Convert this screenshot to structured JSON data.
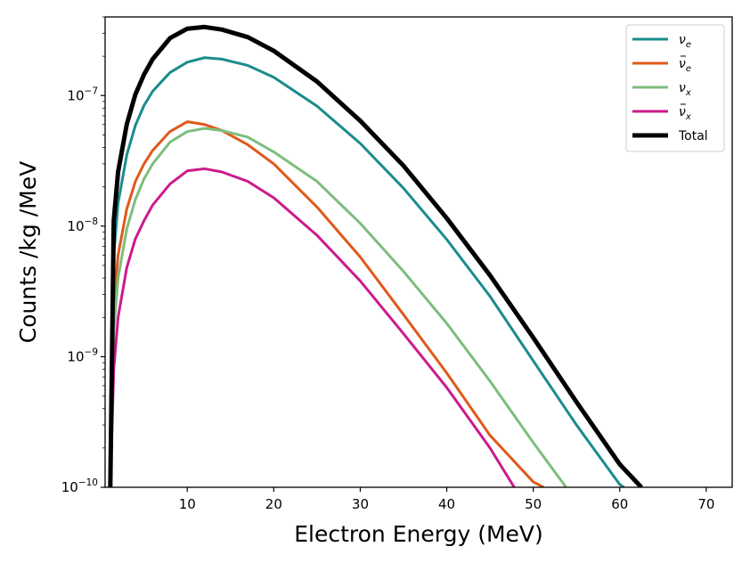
{
  "chart_data": {
    "type": "line",
    "title": "",
    "xlabel": "Electron Energy (MeV)",
    "ylabel": "Counts /kg /MeV",
    "xlim": [
      0.5,
      73
    ],
    "ylim": [
      1e-10,
      4e-07
    ],
    "yscale": "log",
    "grid": false,
    "legend_position": "top-right",
    "xticks": [
      {
        "value": 10,
        "label": "10"
      },
      {
        "value": 20,
        "label": "20"
      },
      {
        "value": 30,
        "label": "30"
      },
      {
        "value": 40,
        "label": "40"
      },
      {
        "value": 50,
        "label": "50"
      },
      {
        "value": 60,
        "label": "60"
      },
      {
        "value": 70,
        "label": "70"
      }
    ],
    "yticks": [
      {
        "value": 1e-10,
        "mantissa": "10",
        "exponent": "−10"
      },
      {
        "value": 1e-09,
        "mantissa": "10",
        "exponent": "−9"
      },
      {
        "value": 1e-08,
        "mantissa": "10",
        "exponent": "−8"
      },
      {
        "value": 1e-07,
        "mantissa": "10",
        "exponent": "−7"
      }
    ],
    "series": [
      {
        "name": "nu_e",
        "legend_main": "ν",
        "legend_sub": "e",
        "legend_bar": false,
        "color": "#1a8c8c",
        "width": 3,
        "x": [
          1.1,
          1.5,
          2,
          3,
          4,
          5,
          6,
          8,
          10,
          12,
          14,
          17,
          20,
          25,
          30,
          35,
          40,
          45,
          50,
          55,
          60,
          60.5
        ],
        "y": [
          1e-10,
          6e-09,
          1.5e-08,
          3.5e-08,
          5.9e-08,
          8.4e-08,
          1.08e-07,
          1.5e-07,
          1.8e-07,
          1.95e-07,
          1.9e-07,
          1.7e-07,
          1.38e-07,
          8.3e-08,
          4.3e-08,
          1.95e-08,
          7.9e-09,
          2.9e-09,
          9.3e-10,
          3e-10,
          1.05e-10,
          1e-10
        ]
      },
      {
        "name": "nu_e_bar",
        "legend_main": "ν",
        "legend_sub": "e",
        "legend_bar": true,
        "color": "#e0591a",
        "width": 3,
        "x": [
          1.1,
          1.5,
          2,
          3,
          4,
          5,
          6,
          8,
          10,
          12,
          14,
          17,
          20,
          25,
          30,
          35,
          40,
          45,
          50,
          51.2
        ],
        "y": [
          1e-10,
          2.5e-09,
          6e-09,
          1.35e-08,
          2.2e-08,
          3e-08,
          3.8e-08,
          5.3e-08,
          6.3e-08,
          6e-08,
          5.4e-08,
          4.2e-08,
          3e-08,
          1.4e-08,
          5.8e-09,
          2.1e-09,
          7.5e-10,
          2.5e-10,
          1.1e-10,
          1e-10
        ]
      },
      {
        "name": "nu_x",
        "legend_main": "ν",
        "legend_sub": "x",
        "legend_bar": false,
        "color": "#7dbd7d",
        "width": 3,
        "x": [
          1.1,
          1.5,
          2,
          3,
          4,
          5,
          6,
          8,
          10,
          12,
          14,
          17,
          20,
          25,
          30,
          35,
          40,
          45,
          50,
          53.8
        ],
        "y": [
          1e-10,
          1.6e-09,
          4e-09,
          9.5e-09,
          1.6e-08,
          2.3e-08,
          3e-08,
          4.4e-08,
          5.3e-08,
          5.6e-08,
          5.4e-08,
          4.8e-08,
          3.7e-08,
          2.2e-08,
          1.05e-08,
          4.5e-09,
          1.8e-09,
          6.5e-10,
          2.2e-10,
          1e-10
        ]
      },
      {
        "name": "nu_x_bar",
        "legend_main": "ν",
        "legend_sub": "x",
        "legend_bar": true,
        "color": "#cc1a8c",
        "width": 3,
        "x": [
          1.1,
          1.5,
          2,
          3,
          4,
          5,
          6,
          8,
          10,
          12,
          14,
          17,
          20,
          25,
          30,
          35,
          40,
          45,
          47.8
        ],
        "y": [
          1e-10,
          8e-10,
          2e-09,
          4.8e-09,
          8e-09,
          1.1e-08,
          1.45e-08,
          2.1e-08,
          2.65e-08,
          2.75e-08,
          2.6e-08,
          2.2e-08,
          1.65e-08,
          8.5e-09,
          3.8e-09,
          1.5e-09,
          5.8e-10,
          2e-10,
          1e-10
        ]
      },
      {
        "name": "Total",
        "legend_main": "Total",
        "legend_sub": "",
        "legend_bar": false,
        "color": "#000000",
        "width": 5,
        "x": [
          1.1,
          1.5,
          2,
          3,
          4,
          5,
          6,
          8,
          10,
          12,
          14,
          17,
          20,
          25,
          30,
          35,
          40,
          45,
          50,
          55,
          60,
          62.5
        ],
        "y": [
          1e-10,
          1.1e-08,
          2.6e-08,
          6e-08,
          1.02e-07,
          1.45e-07,
          1.9e-07,
          2.75e-07,
          3.25e-07,
          3.35e-07,
          3.2e-07,
          2.8e-07,
          2.2e-07,
          1.28e-07,
          6.4e-08,
          2.9e-08,
          1.15e-08,
          4.2e-09,
          1.4e-09,
          4.5e-10,
          1.5e-10,
          1e-10
        ]
      }
    ]
  }
}
